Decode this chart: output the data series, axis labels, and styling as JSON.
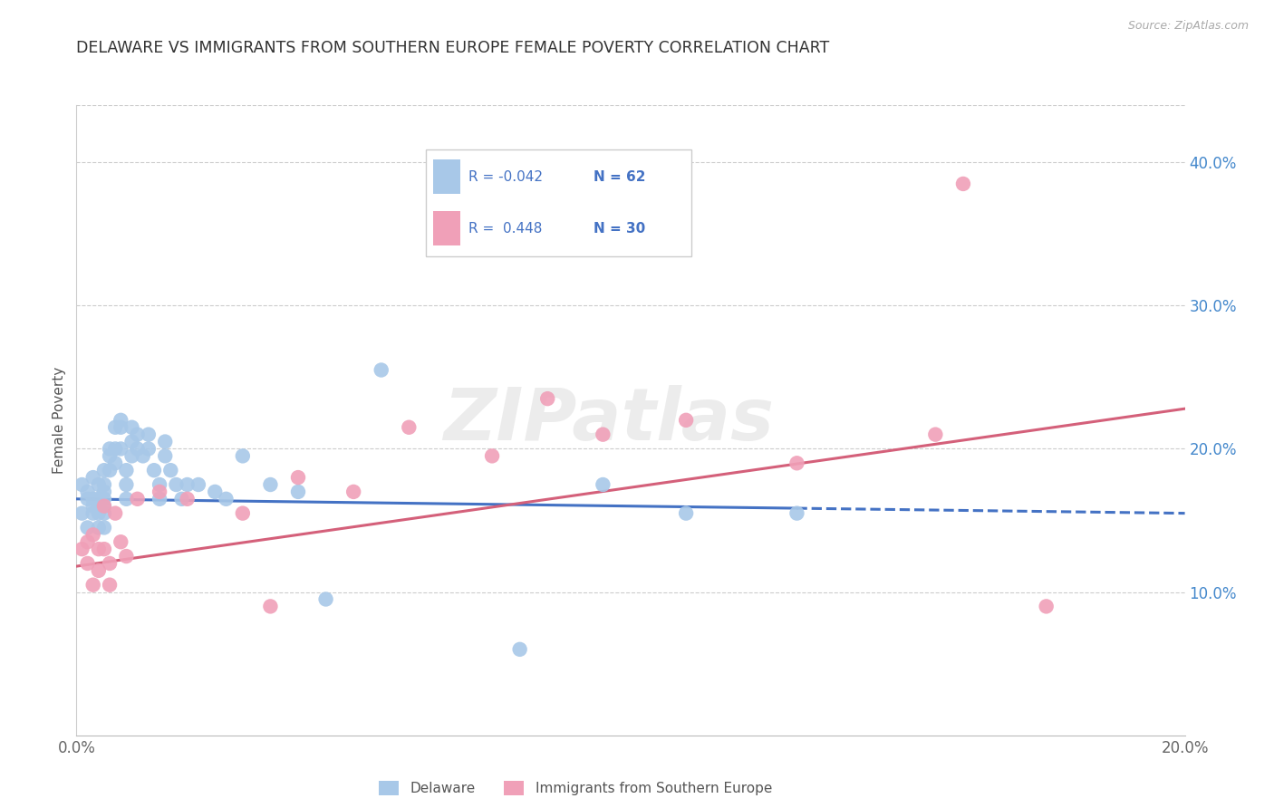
{
  "title": "DELAWARE VS IMMIGRANTS FROM SOUTHERN EUROPE FEMALE POVERTY CORRELATION CHART",
  "source": "Source: ZipAtlas.com",
  "ylabel": "Female Poverty",
  "xlim": [
    0.0,
    0.2
  ],
  "ylim": [
    0.0,
    0.44
  ],
  "ytick_right_labels": [
    "10.0%",
    "20.0%",
    "30.0%",
    "40.0%"
  ],
  "ytick_right_vals": [
    0.1,
    0.2,
    0.3,
    0.4
  ],
  "color_delaware": "#a8c8e8",
  "color_immigrants": "#f0a0b8",
  "color_line_delaware": "#4472c4",
  "color_line_immigrants": "#d4607a",
  "watermark": "ZIPatlas",
  "delaware_x": [
    0.001,
    0.001,
    0.002,
    0.002,
    0.002,
    0.003,
    0.003,
    0.003,
    0.003,
    0.004,
    0.004,
    0.004,
    0.004,
    0.004,
    0.005,
    0.005,
    0.005,
    0.005,
    0.005,
    0.005,
    0.005,
    0.006,
    0.006,
    0.006,
    0.007,
    0.007,
    0.007,
    0.008,
    0.008,
    0.008,
    0.009,
    0.009,
    0.009,
    0.01,
    0.01,
    0.01,
    0.011,
    0.011,
    0.012,
    0.013,
    0.013,
    0.014,
    0.015,
    0.015,
    0.016,
    0.016,
    0.017,
    0.018,
    0.019,
    0.02,
    0.022,
    0.025,
    0.027,
    0.03,
    0.035,
    0.04,
    0.045,
    0.055,
    0.08,
    0.095,
    0.11,
    0.13
  ],
  "delaware_y": [
    0.155,
    0.175,
    0.17,
    0.165,
    0.145,
    0.18,
    0.165,
    0.16,
    0.155,
    0.175,
    0.165,
    0.16,
    0.155,
    0.145,
    0.185,
    0.175,
    0.17,
    0.165,
    0.16,
    0.155,
    0.145,
    0.2,
    0.195,
    0.185,
    0.215,
    0.2,
    0.19,
    0.22,
    0.215,
    0.2,
    0.185,
    0.175,
    0.165,
    0.215,
    0.205,
    0.195,
    0.21,
    0.2,
    0.195,
    0.21,
    0.2,
    0.185,
    0.175,
    0.165,
    0.205,
    0.195,
    0.185,
    0.175,
    0.165,
    0.175,
    0.175,
    0.17,
    0.165,
    0.195,
    0.175,
    0.17,
    0.095,
    0.255,
    0.06,
    0.175,
    0.155,
    0.155
  ],
  "immigrants_x": [
    0.001,
    0.002,
    0.002,
    0.003,
    0.003,
    0.004,
    0.004,
    0.005,
    0.005,
    0.006,
    0.006,
    0.007,
    0.008,
    0.009,
    0.011,
    0.015,
    0.02,
    0.03,
    0.035,
    0.04,
    0.05,
    0.06,
    0.075,
    0.085,
    0.095,
    0.11,
    0.13,
    0.155,
    0.16,
    0.175
  ],
  "immigrants_y": [
    0.13,
    0.135,
    0.12,
    0.14,
    0.105,
    0.13,
    0.115,
    0.16,
    0.13,
    0.12,
    0.105,
    0.155,
    0.135,
    0.125,
    0.165,
    0.17,
    0.165,
    0.155,
    0.09,
    0.18,
    0.17,
    0.215,
    0.195,
    0.235,
    0.21,
    0.22,
    0.19,
    0.21,
    0.385,
    0.09
  ]
}
